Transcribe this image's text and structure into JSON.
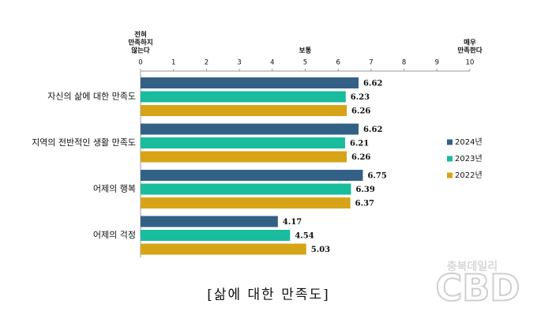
{
  "chart_data": {
    "type": "hbar",
    "annotations": [
      {
        "x": 0,
        "lines": [
          "전혀",
          "만족하지",
          "않는다"
        ]
      },
      {
        "x": 5,
        "lines": [
          "보통"
        ]
      },
      {
        "x": 10,
        "lines": [
          "매우",
          "만족한다"
        ]
      }
    ],
    "categories": [
      "자신의 삶에 대한 만족도",
      "지역의 전반적인 생활 만족도",
      "어제의 행복",
      "어제의 걱정"
    ],
    "series": [
      {
        "name": "2024년",
        "color": "#336186",
        "values": [
          6.62,
          6.62,
          6.75,
          4.17
        ]
      },
      {
        "name": "2023년",
        "color": "#19bc9c",
        "values": [
          6.23,
          6.21,
          6.39,
          4.54
        ]
      },
      {
        "name": "2022년",
        "color": "#d6a416",
        "values": [
          6.26,
          6.26,
          6.37,
          5.03
        ]
      }
    ],
    "xlim": [
      0,
      10
    ],
    "xticks": [
      0,
      1,
      2,
      3,
      4,
      5,
      6,
      7,
      8,
      9,
      10
    ],
    "legend": "right",
    "caption": "[삶에 대한 만족도]",
    "watermark": [
      "충북데일리",
      "CBD"
    ]
  }
}
